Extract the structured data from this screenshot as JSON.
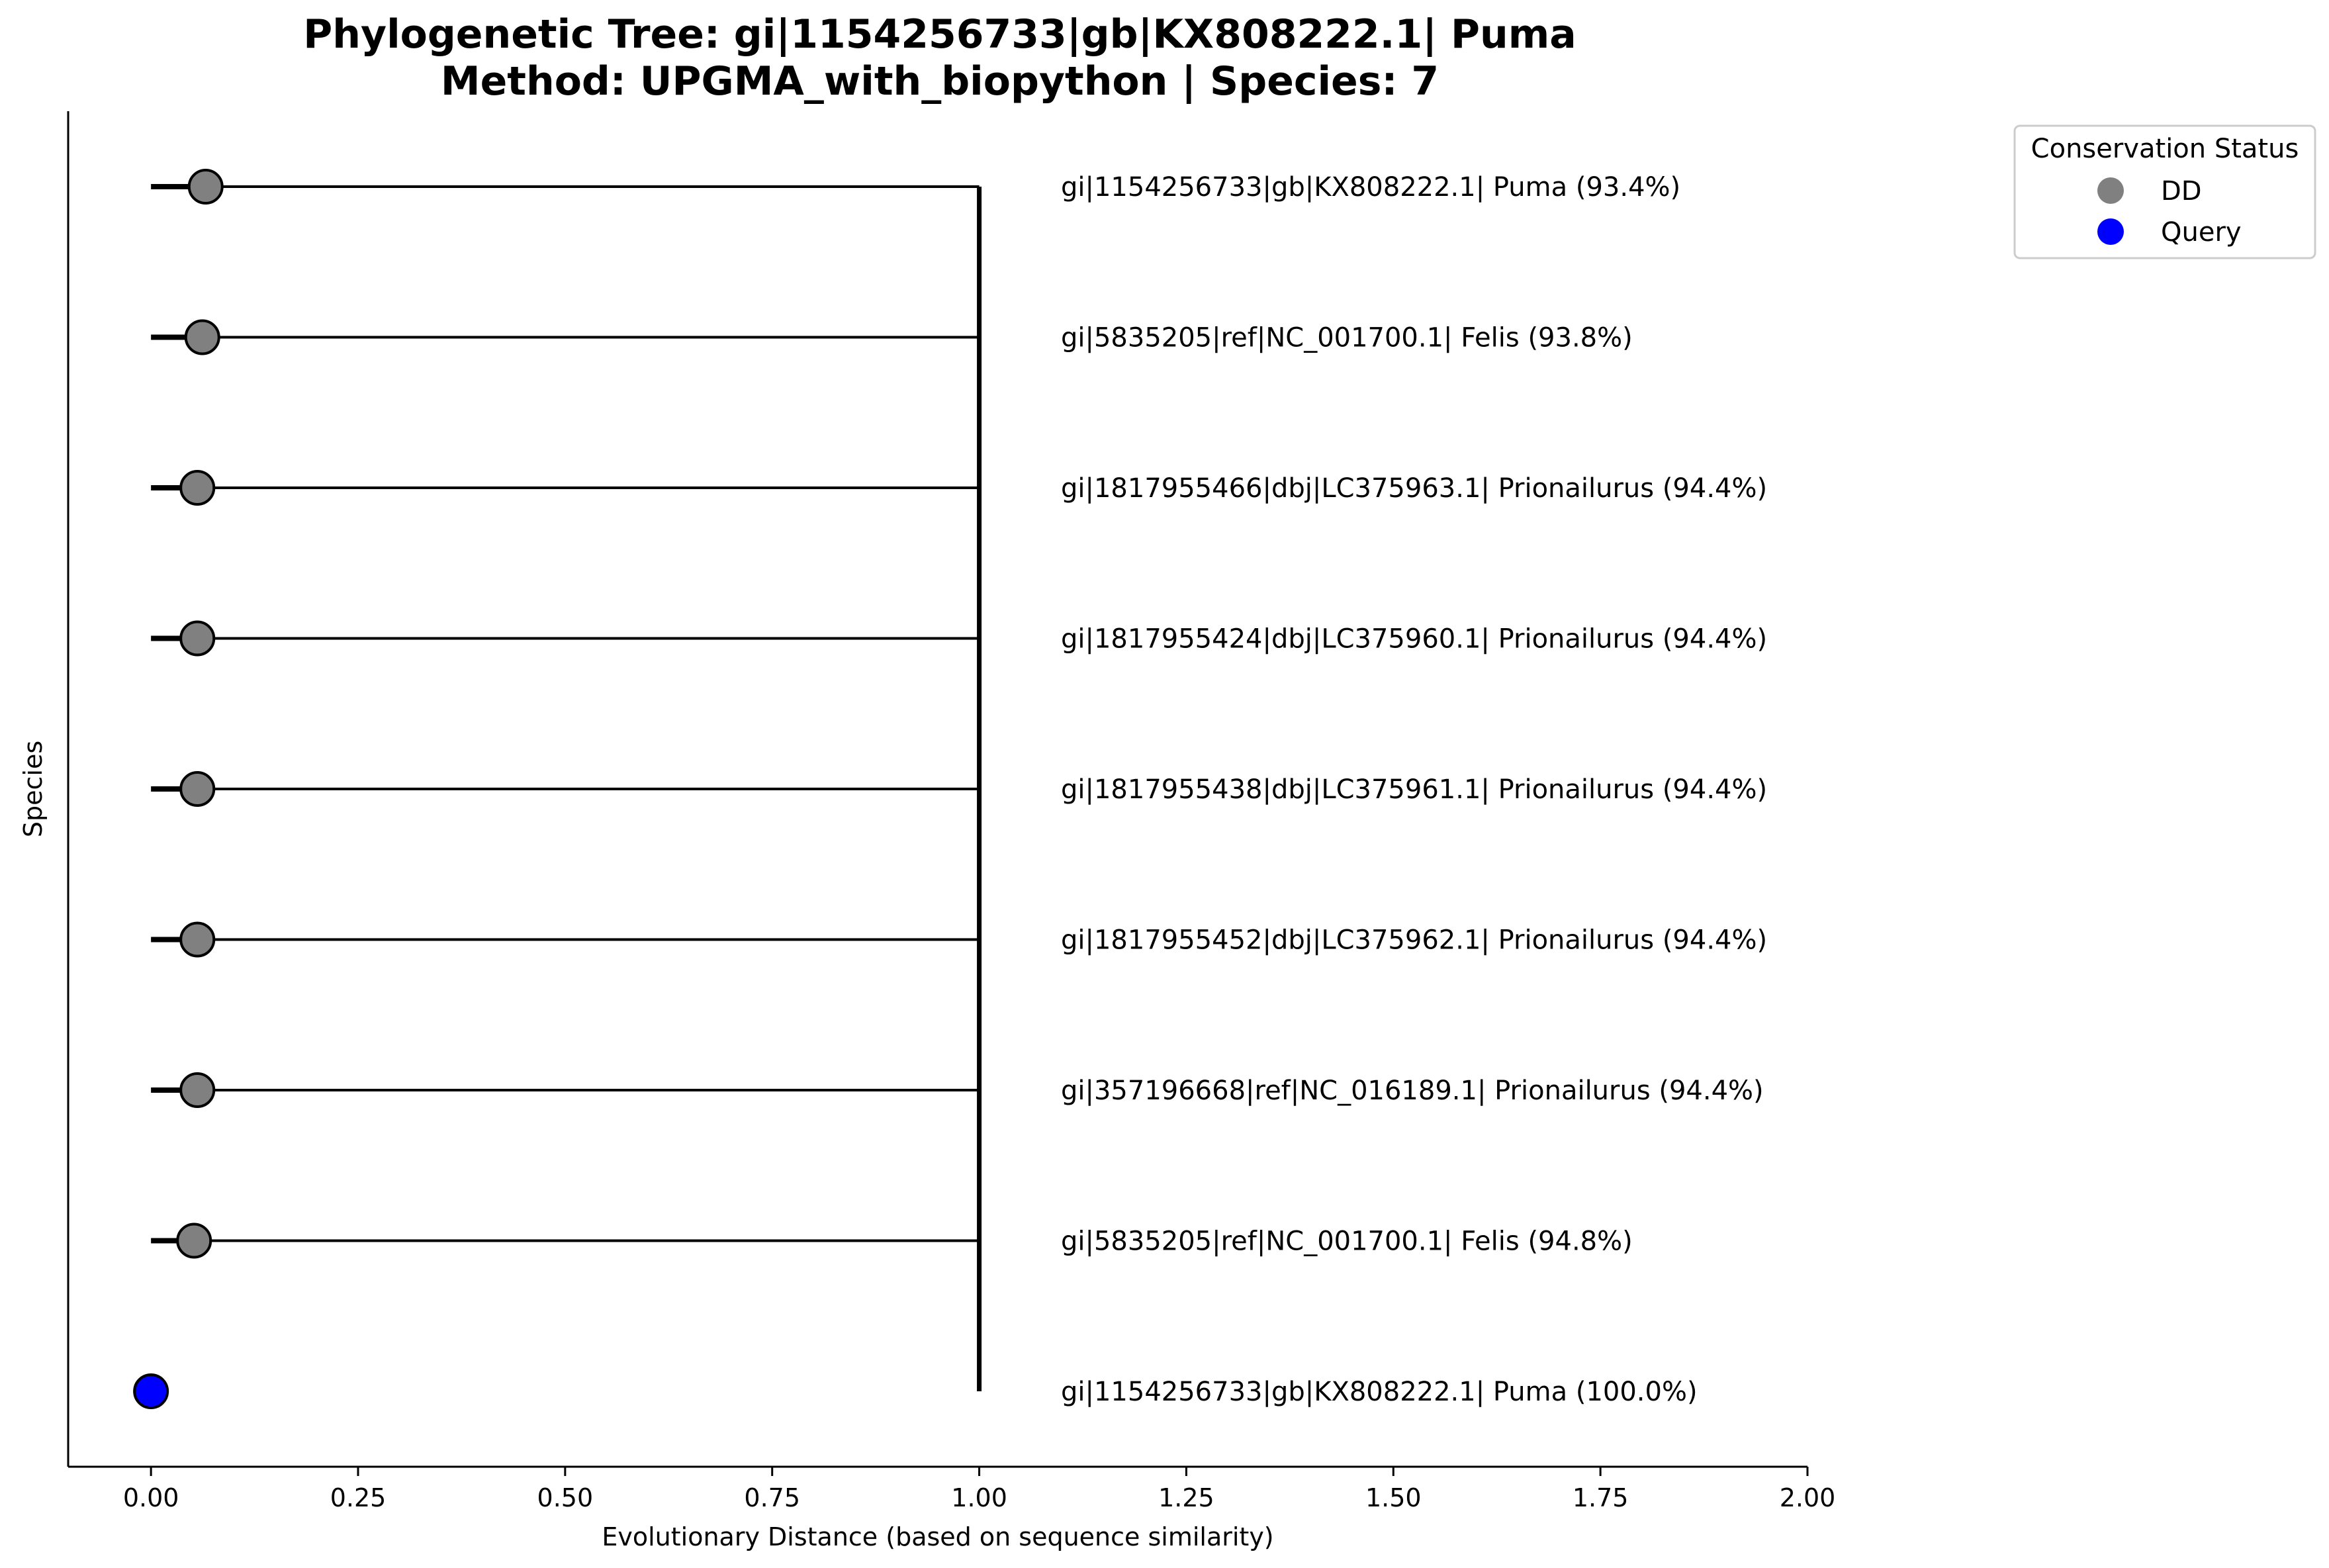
{
  "chart_data": {
    "type": "scatter",
    "title": "Phylogenetic Tree: gi|1154256733|gb|KX808222.1| Puma",
    "subtitle": "Method: UPGMA_with_biopython | Species: 7",
    "xlabel": "Evolutionary Distance (based on sequence similarity)",
    "ylabel": "Species",
    "xlim": [
      -0.1,
      2.0
    ],
    "xticks": [
      "0.00",
      "0.25",
      "0.50",
      "0.75",
      "1.00",
      "1.25",
      "1.50",
      "1.75",
      "2.00"
    ],
    "tick_values": [
      0.0,
      0.25,
      0.5,
      0.75,
      1.0,
      1.25,
      1.5,
      1.75,
      2.0
    ],
    "root_x": 1.0,
    "stub_start": 0.0,
    "stub_end": 0.05,
    "grid": false,
    "legend_position": "upper-right-outside",
    "legend": {
      "title": "Conservation Status",
      "entries": [
        {
          "label": "DD",
          "color": "#808080"
        },
        {
          "label": "Query",
          "color": "#0000ff"
        }
      ]
    },
    "leaves": [
      {
        "label": "gi|1154256733|gb|KX808222.1| Puma (93.4%)",
        "distance": 0.066,
        "status": "DD",
        "stub": true
      },
      {
        "label": "gi|5835205|ref|NC_001700.1| Felis (93.8%)",
        "distance": 0.062,
        "status": "DD",
        "stub": true
      },
      {
        "label": "gi|1817955466|dbj|LC375963.1| Prionailurus (94.4%)",
        "distance": 0.056,
        "status": "DD",
        "stub": true
      },
      {
        "label": "gi|1817955424|dbj|LC375960.1| Prionailurus (94.4%)",
        "distance": 0.056,
        "status": "DD",
        "stub": true
      },
      {
        "label": "gi|1817955438|dbj|LC375961.1| Prionailurus (94.4%)",
        "distance": 0.056,
        "status": "DD",
        "stub": true
      },
      {
        "label": "gi|1817955452|dbj|LC375962.1| Prionailurus (94.4%)",
        "distance": 0.056,
        "status": "DD",
        "stub": true
      },
      {
        "label": "gi|357196668|ref|NC_016189.1| Prionailurus (94.4%)",
        "distance": 0.056,
        "status": "DD",
        "stub": true
      },
      {
        "label": "gi|5835205|ref|NC_001700.1| Felis (94.8%)",
        "distance": 0.052,
        "status": "DD",
        "stub": true
      },
      {
        "label": "gi|1154256733|gb|KX808222.1| Puma (100.0%)",
        "distance": 0.0,
        "status": "Query",
        "stub": false
      }
    ]
  }
}
